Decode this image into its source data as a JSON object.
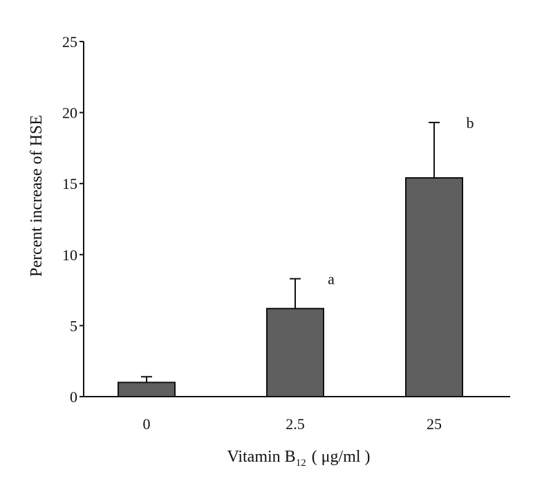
{
  "chart_data": {
    "type": "bar",
    "categories": [
      "0",
      "2.5",
      "25"
    ],
    "values": [
      1.0,
      6.2,
      15.4
    ],
    "error_upper": [
      1.4,
      8.3,
      19.3
    ],
    "annotations": [
      "",
      "a",
      "b"
    ],
    "xlabel_parts": {
      "main": "Vitamin B",
      "subscript": "12",
      "units": "( μg/ml )"
    },
    "ylabel": "Percent increase of HSE",
    "ylim": [
      0,
      25
    ],
    "yticks": [
      0,
      5,
      10,
      15,
      20,
      25
    ],
    "grid": false,
    "legend": "none",
    "colors": {
      "bar_fill": "#5f5f5f",
      "axis": "#111111"
    }
  }
}
